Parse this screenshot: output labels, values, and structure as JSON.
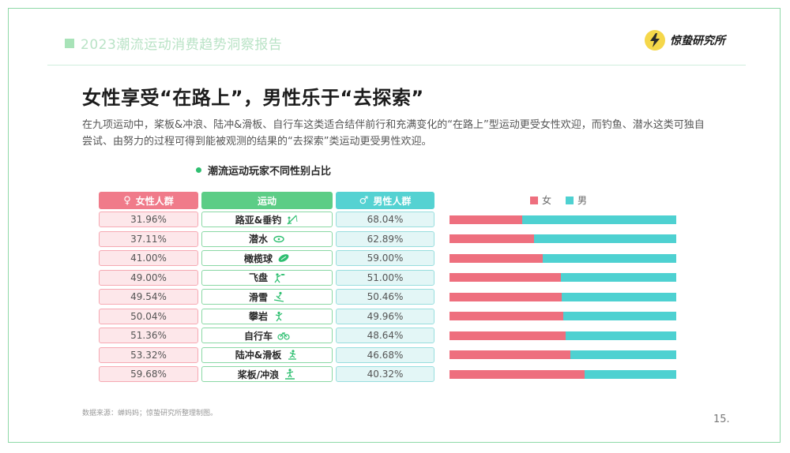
{
  "header": {
    "report_title": "2023潮流运动消费趋势洞察报告",
    "brand_name": "惊蛰研究所"
  },
  "headline": "女性享受“在路上”，男性乐于“去探索”",
  "description": "在九项运动中，桨板&冲浪、陆冲&滑板、自行车这类适合结伴前行和充满变化的“在路上”型运动更受女性欢迎，而钓鱼、潜水这类可独自尝试、由努力的过程可得到能被观测的结果的“去探索”类运动更受男性欢迎。",
  "chart_title": "潮流运动玩家不同性别占比",
  "columns": {
    "female": "女性人群",
    "sport": "运动",
    "male": "男性人群"
  },
  "legend": {
    "female": "女",
    "male": "男"
  },
  "colors": {
    "female": "#ee6f7e",
    "male": "#4ed1d1",
    "accent_green": "#2fbf71"
  },
  "rows": [
    {
      "sport": "路亚&垂钓",
      "female": "31.96%",
      "male": "68.04%",
      "icon": "fishing-icon"
    },
    {
      "sport": "潜水",
      "female": "37.11%",
      "male": "62.89%",
      "icon": "diving-icon"
    },
    {
      "sport": "橄榄球",
      "female": "41.00%",
      "male": "59.00%",
      "icon": "rugby-ball-icon"
    },
    {
      "sport": "飞盘",
      "female": "49.00%",
      "male": "51.00%",
      "icon": "frisbee-icon"
    },
    {
      "sport": "滑雪",
      "female": "49.54%",
      "male": "50.46%",
      "icon": "skiing-icon"
    },
    {
      "sport": "攀岩",
      "female": "50.04%",
      "male": "49.96%",
      "icon": "climbing-icon"
    },
    {
      "sport": "自行车",
      "female": "51.36%",
      "male": "48.64%",
      "icon": "bicycle-icon"
    },
    {
      "sport": "陆冲&滑板",
      "female": "53.32%",
      "male": "46.68%",
      "icon": "skateboard-icon"
    },
    {
      "sport": "桨板/冲浪",
      "female": "59.68%",
      "male": "40.32%",
      "icon": "surfing-icon"
    }
  ],
  "chart_data": {
    "type": "bar",
    "orientation": "horizontal-stacked",
    "categories": [
      "路亚&垂钓",
      "潜水",
      "橄榄球",
      "飞盘",
      "滑雪",
      "攀岩",
      "自行车",
      "陆冲&滑板",
      "桨板/冲浪"
    ],
    "series": [
      {
        "name": "女",
        "values": [
          31.96,
          37.11,
          41.0,
          49.0,
          49.54,
          50.04,
          51.36,
          53.32,
          59.68
        ]
      },
      {
        "name": "男",
        "values": [
          68.04,
          62.89,
          59.0,
          51.0,
          50.46,
          49.96,
          48.64,
          46.68,
          40.32
        ]
      }
    ],
    "title": "潮流运动玩家不同性别占比",
    "legend_position": "top",
    "xlim": [
      0,
      100
    ]
  },
  "footer": {
    "source": "数据来源：蝉妈妈；惊蛰研究所整理制图。",
    "page": "15."
  }
}
